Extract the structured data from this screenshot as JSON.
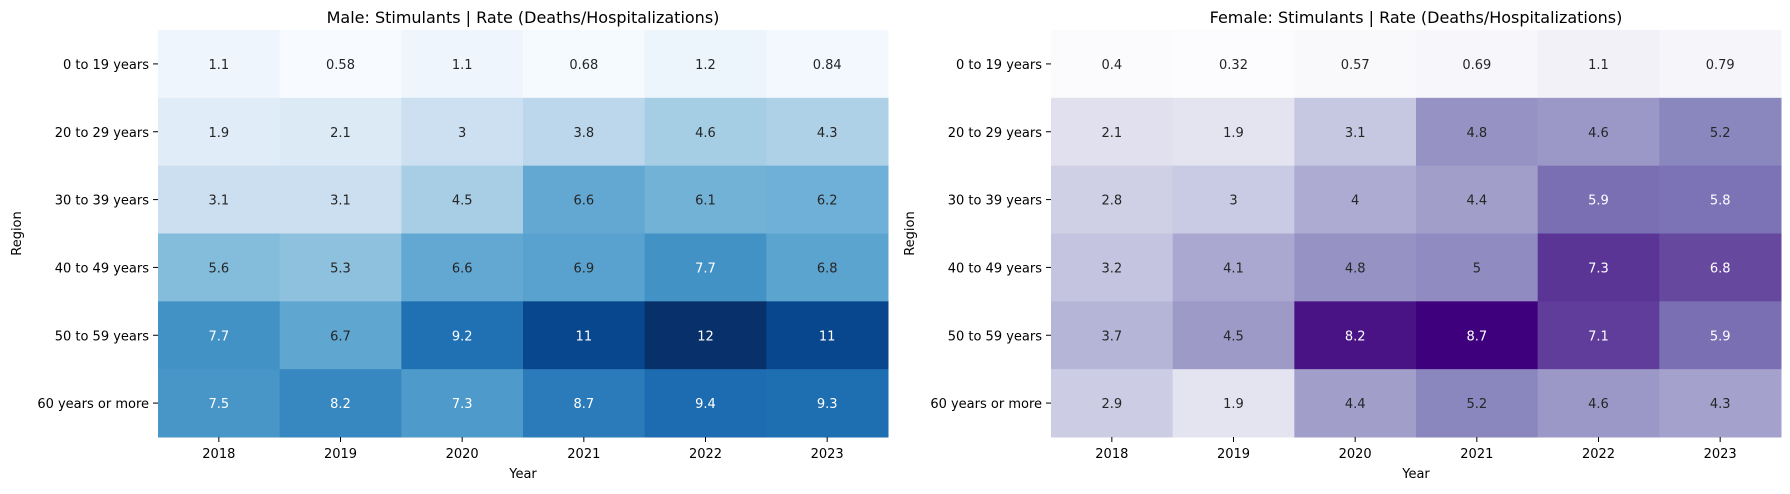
{
  "chart_data": [
    {
      "type": "heatmap",
      "title": "Male: Stimulants | Rate (Deaths/Hospitalizations)",
      "xlabel": "Year",
      "ylabel": "Region",
      "x": [
        "2018",
        "2019",
        "2020",
        "2021",
        "2022",
        "2023"
      ],
      "y": [
        "0 to 19 years",
        "20 to 29 years",
        "30 to 39 years",
        "40 to 49 years",
        "50 to 59 years",
        "60 years or more"
      ],
      "values": [
        [
          1.1,
          0.58,
          1.1,
          0.68,
          1.2,
          0.84
        ],
        [
          1.9,
          2.1,
          3,
          3.8,
          4.6,
          4.3
        ],
        [
          3.1,
          3.1,
          4.5,
          6.6,
          6.1,
          6.2
        ],
        [
          5.6,
          5.3,
          6.6,
          6.9,
          7.7,
          6.8
        ],
        [
          7.7,
          6.7,
          9.2,
          11,
          12,
          11
        ],
        [
          7.5,
          8.2,
          7.3,
          8.7,
          9.4,
          9.3
        ]
      ],
      "colormap": "Blues",
      "colorbar": false
    },
    {
      "type": "heatmap",
      "title": "Female: Stimulants | Rate (Deaths/Hospitalizations)",
      "xlabel": "Year",
      "ylabel": "Region",
      "x": [
        "2018",
        "2019",
        "2020",
        "2021",
        "2022",
        "2023"
      ],
      "y": [
        "0 to 19 years",
        "20 to 29 years",
        "30 to 39 years",
        "40 to 49 years",
        "50 to 59 years",
        "60 years or more"
      ],
      "values": [
        [
          0.4,
          0.32,
          0.57,
          0.69,
          1.1,
          0.79
        ],
        [
          2.1,
          1.9,
          3.1,
          4.8,
          4.6,
          5.2
        ],
        [
          2.8,
          3,
          4,
          4.4,
          5.9,
          5.8
        ],
        [
          3.2,
          4.1,
          4.8,
          5,
          7.3,
          6.8
        ],
        [
          3.7,
          4.5,
          8.2,
          8.7,
          7.1,
          5.9
        ],
        [
          2.9,
          1.9,
          4.4,
          5.2,
          4.6,
          4.3
        ]
      ],
      "colormap": "Purples",
      "colorbar": false
    }
  ]
}
